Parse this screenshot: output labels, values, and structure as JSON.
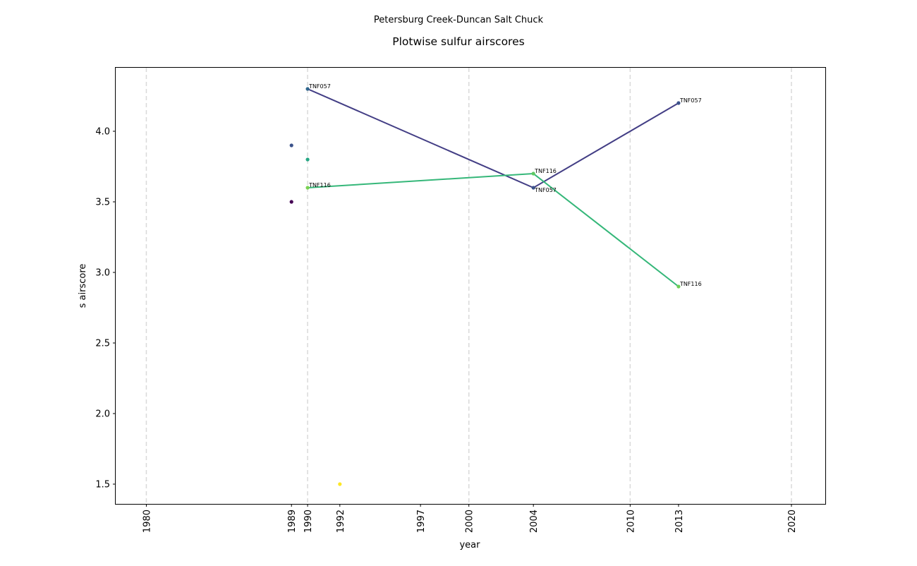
{
  "chart_data": {
    "type": "scatter",
    "suptitle": "Petersburg Creek-Duncan Salt Chuck",
    "title": "Plotwise sulfur airscores",
    "xlabel": "year",
    "ylabel": "s airscore",
    "xlim": [
      1978.1,
      2022.1
    ],
    "ylim": [
      1.36,
      4.45
    ],
    "x_ticks": [
      1980,
      1989,
      1990,
      1992,
      1997,
      2000,
      2004,
      2010,
      2013,
      2020
    ],
    "y_ticks": [
      1.5,
      2.0,
      2.5,
      3.0,
      3.5,
      4.0
    ],
    "y_tick_labels": [
      "1.5",
      "2.0",
      "2.5",
      "3.0",
      "3.5",
      "4.0"
    ],
    "vertical_gridlines": [
      1980,
      1990,
      2000,
      2010,
      2020
    ],
    "series": [
      {
        "name": "TNF057",
        "color": "#433e85",
        "points": [
          {
            "x": 1990,
            "y": 4.3,
            "label": "TNF057",
            "label_pos": "above-right"
          },
          {
            "x": 2004,
            "y": 3.6,
            "label": "TNF057",
            "label_pos": "below-right"
          },
          {
            "x": 2013,
            "y": 4.2,
            "label": "TNF057",
            "label_pos": "above-right"
          }
        ]
      },
      {
        "name": "TNF116",
        "color": "#35b779",
        "points": [
          {
            "x": 1990,
            "y": 3.6,
            "label": "TNF116",
            "label_pos": "above-right"
          },
          {
            "x": 2004,
            "y": 3.7,
            "label": "TNF116",
            "label_pos": "above-right"
          },
          {
            "x": 2013,
            "y": 2.9,
            "label": "TNF116",
            "label_pos": "above-right"
          }
        ]
      }
    ],
    "scatter_points": [
      {
        "x": 1990,
        "y": 4.3,
        "color": "#31688e"
      },
      {
        "x": 1989,
        "y": 3.9,
        "color": "#3b528b"
      },
      {
        "x": 1990,
        "y": 3.8,
        "color": "#26a784"
      },
      {
        "x": 1990,
        "y": 3.6,
        "color": "#7ad151"
      },
      {
        "x": 1989,
        "y": 3.5,
        "color": "#440154"
      },
      {
        "x": 1992,
        "y": 1.5,
        "color": "#fde725"
      },
      {
        "x": 2004,
        "y": 3.7,
        "color": "#5ec962"
      },
      {
        "x": 2004,
        "y": 3.6,
        "color": "#3b528b"
      },
      {
        "x": 2013,
        "y": 4.2,
        "color": "#3b528b"
      },
      {
        "x": 2013,
        "y": 2.9,
        "color": "#6ece58"
      }
    ]
  }
}
